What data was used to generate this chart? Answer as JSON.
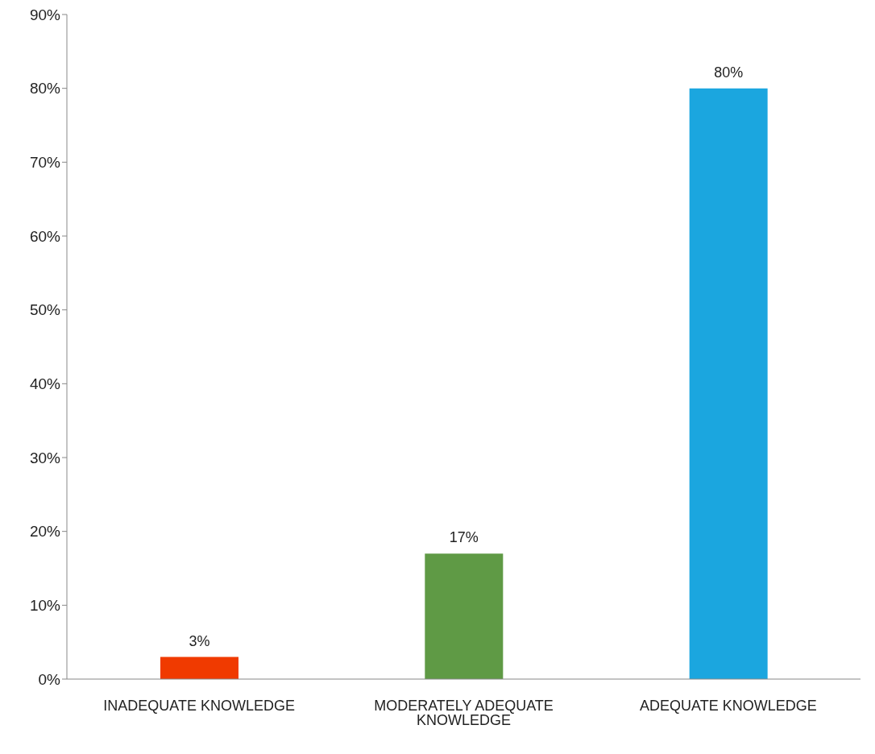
{
  "chart_data": {
    "type": "bar",
    "categories": [
      "INADEQUATE KNOWLEDGE",
      "MODERATELY ADEQUATE KNOWLEDGE",
      "ADEQUATE KNOWLEDGE"
    ],
    "values": [
      3,
      17,
      80
    ],
    "colors": [
      "#f03a00",
      "#5f9a45",
      "#1ba6df"
    ],
    "value_labels": [
      "3%",
      "17%",
      "80%"
    ],
    "ylim": [
      0,
      90
    ],
    "yticks": [
      {
        "value": 0,
        "label": "0%"
      },
      {
        "value": 10,
        "label": "10%"
      },
      {
        "value": 20,
        "label": "20%"
      },
      {
        "value": 30,
        "label": "30%"
      },
      {
        "value": 40,
        "label": "40%"
      },
      {
        "value": 50,
        "label": "50%"
      },
      {
        "value": 60,
        "label": "60%"
      },
      {
        "value": 70,
        "label": "70%"
      },
      {
        "value": 80,
        "label": "80%"
      },
      {
        "value": 90,
        "label": "90%"
      }
    ],
    "grid": false,
    "legend": false
  }
}
